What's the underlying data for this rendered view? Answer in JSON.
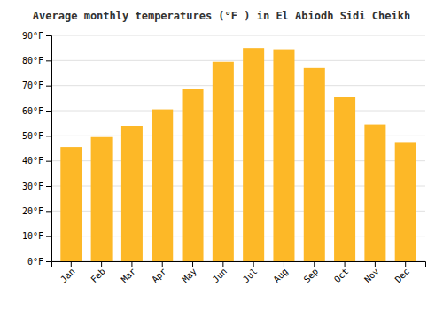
{
  "chart_data": {
    "type": "bar",
    "title": "Average monthly temperatures (°F ) in El Abiodh Sidi Cheikh",
    "categories": [
      "Jan",
      "Feb",
      "Mar",
      "Apr",
      "May",
      "Jun",
      "Jul",
      "Aug",
      "Sep",
      "Oct",
      "Nov",
      "Dec"
    ],
    "values": [
      45.5,
      49.5,
      54.0,
      60.5,
      68.5,
      79.5,
      85.0,
      84.5,
      77.0,
      65.5,
      54.5,
      47.5
    ],
    "color": "#FDB827",
    "ylim": [
      0,
      90
    ],
    "yticks": [
      {
        "value": 0,
        "label": "0°F"
      },
      {
        "value": 10,
        "label": "10°F"
      },
      {
        "value": 20,
        "label": "20°F"
      },
      {
        "value": 30,
        "label": "30°F"
      },
      {
        "value": 40,
        "label": "40°F"
      },
      {
        "value": 50,
        "label": "50°F"
      },
      {
        "value": 60,
        "label": "60°F"
      },
      {
        "value": 70,
        "label": "70°F"
      },
      {
        "value": 80,
        "label": "80°F"
      },
      {
        "value": 90,
        "label": "90°F"
      }
    ],
    "grid": true
  }
}
